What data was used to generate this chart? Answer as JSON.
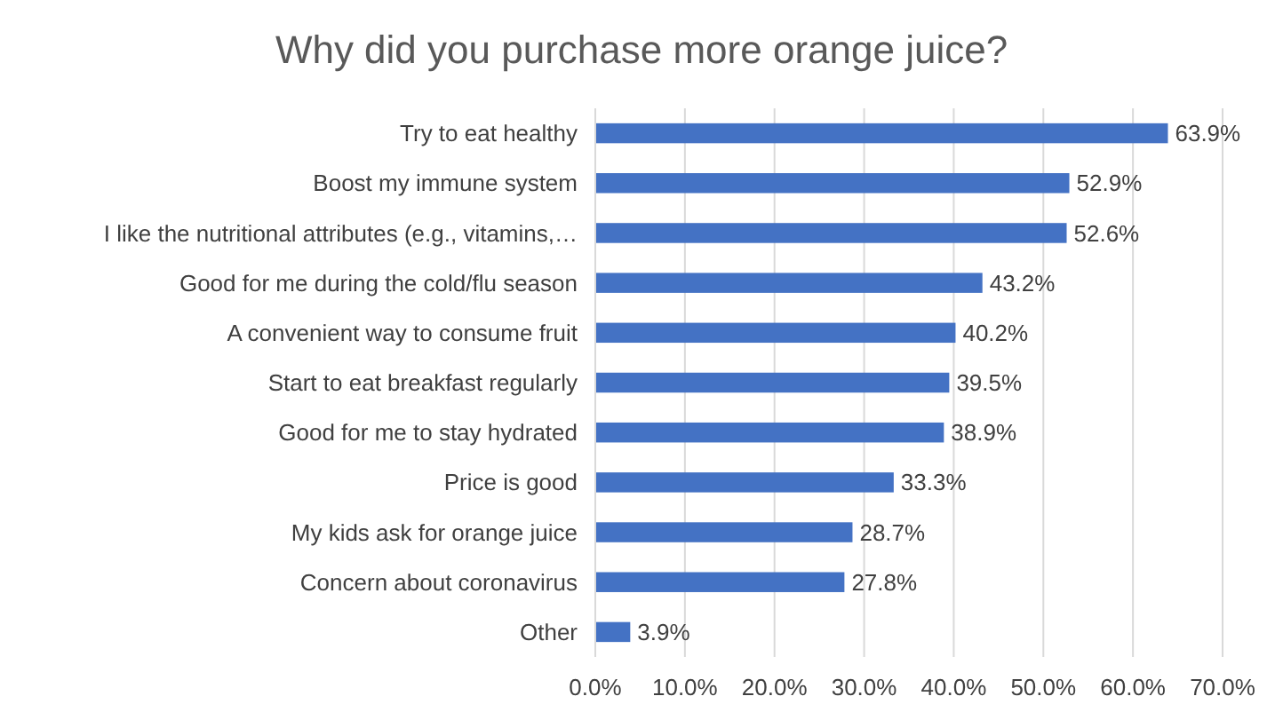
{
  "chart_data": {
    "type": "bar",
    "orientation": "horizontal",
    "title": "Why did you purchase more orange juice?",
    "categories": [
      "Try to eat healthy",
      "Boost my immune system",
      "I like the nutritional attributes (e.g., vitamins,…",
      "Good for me during the cold/flu season",
      "A convenient way to consume fruit",
      "Start to eat breakfast regularly",
      "Good for me to stay hydrated",
      "Price is good",
      "My kids ask for orange juice",
      "Concern about coronavirus",
      "Other"
    ],
    "values": [
      63.9,
      52.9,
      52.6,
      43.2,
      40.2,
      39.5,
      38.9,
      33.3,
      28.7,
      27.8,
      3.9
    ],
    "value_labels": [
      "63.9%",
      "52.9%",
      "52.6%",
      "43.2%",
      "40.2%",
      "39.5%",
      "38.9%",
      "33.3%",
      "28.7%",
      "27.8%",
      "3.9%"
    ],
    "color": "#4472c4",
    "xlim": [
      0,
      70
    ],
    "xticks": [
      {
        "value": 0,
        "label": "0.0%"
      },
      {
        "value": 10,
        "label": "10.0%"
      },
      {
        "value": 20,
        "label": "20.0%"
      },
      {
        "value": 30,
        "label": "30.0%"
      },
      {
        "value": 40,
        "label": "40.0%"
      },
      {
        "value": 50,
        "label": "50.0%"
      },
      {
        "value": 60,
        "label": "60.0%"
      },
      {
        "value": 70,
        "label": "70.0%"
      }
    ],
    "grid": "x"
  }
}
